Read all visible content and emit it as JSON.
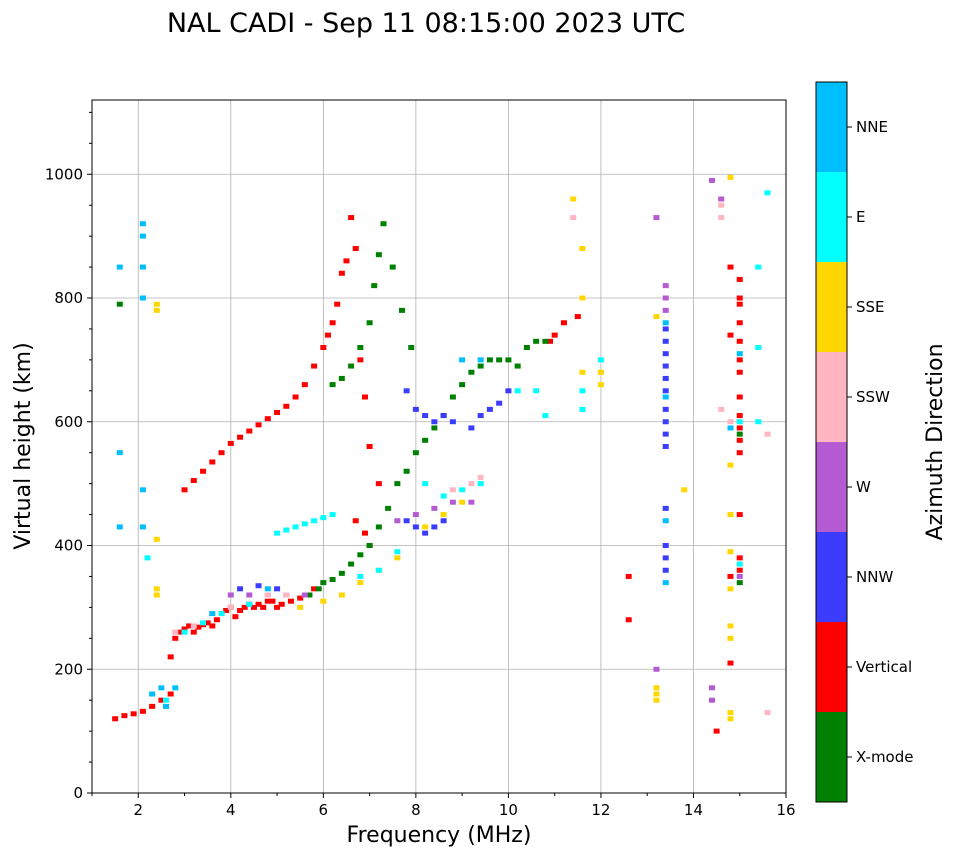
{
  "chart_data": {
    "type": "scatter",
    "title": "NAL CADI - Sep 11 08:15:00 2023 UTC",
    "xlabel": "Frequency (MHz)",
    "ylabel": "Virtual height (km)",
    "xlim": [
      1,
      16
    ],
    "ylim": [
      0,
      1120
    ],
    "xticks": [
      2,
      4,
      6,
      8,
      10,
      12,
      14,
      16
    ],
    "yticks": [
      0,
      200,
      400,
      600,
      800,
      1000
    ],
    "grid": true,
    "colorbar": {
      "label": "Azimuth Direction",
      "categories": [
        {
          "name": "X-mode",
          "color": "#008000"
        },
        {
          "name": "Vertical",
          "color": "#ff0000"
        },
        {
          "name": "NNW",
          "color": "#3c3cff"
        },
        {
          "name": "W",
          "color": "#b45ad2"
        },
        {
          "name": "SSW",
          "color": "#ffb6c1"
        },
        {
          "name": "SSE",
          "color": "#ffd700"
        },
        {
          "name": "E",
          "color": "#00ffff"
        },
        {
          "name": "NNE",
          "color": "#00bfff"
        }
      ]
    },
    "series": [
      {
        "name": "Vertical",
        "points": [
          [
            1.5,
            120
          ],
          [
            1.7,
            125
          ],
          [
            1.9,
            128
          ],
          [
            2.1,
            132
          ],
          [
            2.3,
            140
          ],
          [
            2.5,
            150
          ],
          [
            2.7,
            160
          ],
          [
            2.7,
            220
          ],
          [
            2.8,
            250
          ],
          [
            2.9,
            260
          ],
          [
            3.0,
            265
          ],
          [
            3.1,
            270
          ],
          [
            3.2,
            260
          ],
          [
            3.3,
            268
          ],
          [
            3.4,
            272
          ],
          [
            3.5,
            275
          ],
          [
            3.6,
            270
          ],
          [
            3.7,
            280
          ],
          [
            3.8,
            290
          ],
          [
            3.9,
            295
          ],
          [
            4.0,
            300
          ],
          [
            4.1,
            285
          ],
          [
            4.2,
            295
          ],
          [
            4.3,
            300
          ],
          [
            4.4,
            305
          ],
          [
            4.5,
            300
          ],
          [
            4.6,
            305
          ],
          [
            4.7,
            300
          ],
          [
            4.8,
            310
          ],
          [
            4.9,
            310
          ],
          [
            5.0,
            300
          ],
          [
            5.1,
            305
          ],
          [
            5.3,
            310
          ],
          [
            5.5,
            315
          ],
          [
            5.8,
            330
          ],
          [
            3.0,
            490
          ],
          [
            3.2,
            505
          ],
          [
            3.4,
            520
          ],
          [
            3.6,
            535
          ],
          [
            3.8,
            550
          ],
          [
            4.0,
            565
          ],
          [
            4.2,
            575
          ],
          [
            4.4,
            585
          ],
          [
            4.6,
            595
          ],
          [
            4.8,
            605
          ],
          [
            5.0,
            615
          ],
          [
            5.2,
            625
          ],
          [
            5.4,
            640
          ],
          [
            5.6,
            660
          ],
          [
            5.8,
            690
          ],
          [
            6.0,
            720
          ],
          [
            6.1,
            740
          ],
          [
            6.2,
            760
          ],
          [
            6.3,
            790
          ],
          [
            6.4,
            840
          ],
          [
            6.5,
            860
          ],
          [
            6.6,
            930
          ],
          [
            6.7,
            880
          ],
          [
            6.8,
            700
          ],
          [
            6.9,
            640
          ],
          [
            7.0,
            560
          ],
          [
            7.2,
            500
          ],
          [
            6.7,
            440
          ],
          [
            6.9,
            420
          ],
          [
            7.0,
            400
          ],
          [
            12.6,
            350
          ],
          [
            12.6,
            280
          ],
          [
            14.8,
            210
          ],
          [
            14.8,
            350
          ],
          [
            14.5,
            100
          ],
          [
            15.0,
            360
          ],
          [
            15.0,
            380
          ],
          [
            15.0,
            450
          ],
          [
            15.0,
            550
          ],
          [
            15.0,
            570
          ],
          [
            15.0,
            590
          ],
          [
            15.0,
            610
          ],
          [
            15.0,
            640
          ],
          [
            15.0,
            680
          ],
          [
            15.0,
            700
          ],
          [
            15.0,
            730
          ],
          [
            15.0,
            760
          ],
          [
            15.0,
            790
          ],
          [
            15.0,
            800
          ],
          [
            15.0,
            830
          ],
          [
            14.8,
            850
          ],
          [
            14.8,
            740
          ],
          [
            11.5,
            770
          ],
          [
            11.2,
            760
          ],
          [
            11.0,
            740
          ],
          [
            10.9,
            730
          ]
        ]
      },
      {
        "name": "X-mode",
        "points": [
          [
            1.6,
            790
          ],
          [
            5.7,
            320
          ],
          [
            5.9,
            330
          ],
          [
            6.0,
            340
          ],
          [
            6.2,
            345
          ],
          [
            6.4,
            355
          ],
          [
            6.6,
            370
          ],
          [
            6.8,
            385
          ],
          [
            7.0,
            400
          ],
          [
            7.2,
            430
          ],
          [
            7.4,
            460
          ],
          [
            7.6,
            500
          ],
          [
            7.8,
            520
          ],
          [
            8.0,
            550
          ],
          [
            8.2,
            570
          ],
          [
            8.4,
            590
          ],
          [
            8.6,
            610
          ],
          [
            8.8,
            640
          ],
          [
            9.0,
            660
          ],
          [
            9.2,
            680
          ],
          [
            9.4,
            690
          ],
          [
            9.6,
            700
          ],
          [
            9.8,
            700
          ],
          [
            10.0,
            700
          ],
          [
            10.2,
            690
          ],
          [
            10.4,
            720
          ],
          [
            10.6,
            730
          ],
          [
            10.8,
            730
          ],
          [
            6.2,
            660
          ],
          [
            6.4,
            670
          ],
          [
            6.6,
            690
          ],
          [
            6.8,
            720
          ],
          [
            7.0,
            760
          ],
          [
            7.1,
            820
          ],
          [
            7.2,
            870
          ],
          [
            7.3,
            920
          ],
          [
            7.5,
            850
          ],
          [
            7.7,
            780
          ],
          [
            7.9,
            720
          ],
          [
            15.0,
            340
          ],
          [
            15.0,
            580
          ]
        ]
      },
      {
        "name": "NNW",
        "points": [
          [
            4.2,
            330
          ],
          [
            4.6,
            335
          ],
          [
            5.0,
            330
          ],
          [
            7.8,
            440
          ],
          [
            8.0,
            430
          ],
          [
            8.2,
            420
          ],
          [
            8.4,
            430
          ],
          [
            8.6,
            440
          ],
          [
            7.8,
            650
          ],
          [
            8.0,
            620
          ],
          [
            8.2,
            610
          ],
          [
            8.4,
            600
          ],
          [
            8.6,
            610
          ],
          [
            8.8,
            600
          ],
          [
            9.2,
            590
          ],
          [
            9.4,
            610
          ],
          [
            9.6,
            620
          ],
          [
            9.8,
            630
          ],
          [
            10.0,
            650
          ],
          [
            13.4,
            360
          ],
          [
            13.4,
            380
          ],
          [
            13.4,
            400
          ],
          [
            13.4,
            460
          ],
          [
            13.4,
            560
          ],
          [
            13.4,
            580
          ],
          [
            13.4,
            600
          ],
          [
            13.4,
            620
          ],
          [
            13.4,
            650
          ],
          [
            13.4,
            670
          ],
          [
            13.4,
            690
          ],
          [
            13.4,
            710
          ],
          [
            13.4,
            730
          ],
          [
            13.4,
            750
          ]
        ]
      },
      {
        "name": "W",
        "points": [
          [
            4.0,
            320
          ],
          [
            4.4,
            320
          ],
          [
            4.8,
            320
          ],
          [
            5.2,
            320
          ],
          [
            5.6,
            320
          ],
          [
            7.6,
            440
          ],
          [
            8.0,
            450
          ],
          [
            8.4,
            460
          ],
          [
            8.8,
            470
          ],
          [
            9.2,
            470
          ],
          [
            13.2,
            930
          ],
          [
            13.2,
            200
          ],
          [
            13.4,
            780
          ],
          [
            13.4,
            800
          ],
          [
            13.4,
            820
          ],
          [
            14.4,
            990
          ],
          [
            14.6,
            960
          ],
          [
            15.0,
            350
          ],
          [
            14.4,
            150
          ],
          [
            14.4,
            170
          ]
        ]
      },
      {
        "name": "SSW",
        "points": [
          [
            2.8,
            260
          ],
          [
            3.2,
            270
          ],
          [
            3.6,
            290
          ],
          [
            4.0,
            300
          ],
          [
            4.8,
            320
          ],
          [
            5.2,
            320
          ],
          [
            8.8,
            490
          ],
          [
            9.2,
            500
          ],
          [
            9.4,
            510
          ],
          [
            14.6,
            930
          ],
          [
            14.6,
            950
          ],
          [
            14.6,
            620
          ],
          [
            14.8,
            600
          ],
          [
            15.6,
            580
          ],
          [
            15.6,
            130
          ],
          [
            11.4,
            930
          ]
        ]
      },
      {
        "name": "SSE",
        "points": [
          [
            2.4,
            330
          ],
          [
            2.4,
            320
          ],
          [
            2.4,
            780
          ],
          [
            2.4,
            790
          ],
          [
            2.4,
            410
          ],
          [
            5.5,
            300
          ],
          [
            6.0,
            310
          ],
          [
            6.4,
            320
          ],
          [
            6.8,
            340
          ],
          [
            7.2,
            360
          ],
          [
            7.6,
            380
          ],
          [
            8.2,
            430
          ],
          [
            8.6,
            450
          ],
          [
            9.0,
            470
          ],
          [
            11.4,
            960
          ],
          [
            11.6,
            880
          ],
          [
            11.6,
            800
          ],
          [
            11.6,
            680
          ],
          [
            12.0,
            660
          ],
          [
            12.0,
            680
          ],
          [
            13.2,
            150
          ],
          [
            13.2,
            160
          ],
          [
            13.2,
            170
          ],
          [
            13.2,
            770
          ],
          [
            13.8,
            490
          ],
          [
            14.8,
            130
          ],
          [
            14.8,
            120
          ],
          [
            14.8,
            250
          ],
          [
            14.8,
            270
          ],
          [
            14.8,
            330
          ],
          [
            14.8,
            390
          ],
          [
            14.8,
            530
          ],
          [
            14.8,
            450
          ],
          [
            14.8,
            995
          ]
        ]
      },
      {
        "name": "E",
        "points": [
          [
            2.2,
            380
          ],
          [
            2.6,
            150
          ],
          [
            3.0,
            260
          ],
          [
            3.4,
            275
          ],
          [
            3.8,
            290
          ],
          [
            4.4,
            305
          ],
          [
            5.0,
            420
          ],
          [
            5.2,
            425
          ],
          [
            5.4,
            430
          ],
          [
            5.6,
            435
          ],
          [
            5.8,
            440
          ],
          [
            6.0,
            445
          ],
          [
            6.2,
            450
          ],
          [
            6.8,
            350
          ],
          [
            7.2,
            360
          ],
          [
            7.6,
            390
          ],
          [
            8.2,
            500
          ],
          [
            8.6,
            480
          ],
          [
            9.0,
            490
          ],
          [
            9.4,
            500
          ],
          [
            10.2,
            650
          ],
          [
            10.6,
            650
          ],
          [
            10.8,
            610
          ],
          [
            11.6,
            620
          ],
          [
            11.6,
            650
          ],
          [
            12.0,
            700
          ],
          [
            15.0,
            370
          ],
          [
            15.0,
            600
          ],
          [
            15.4,
            600
          ],
          [
            15.4,
            720
          ],
          [
            15.4,
            850
          ],
          [
            15.6,
            970
          ]
        ]
      },
      {
        "name": "NNE",
        "points": [
          [
            1.6,
            850
          ],
          [
            1.6,
            430
          ],
          [
            1.6,
            550
          ],
          [
            2.1,
            920
          ],
          [
            2.1,
            900
          ],
          [
            2.1,
            850
          ],
          [
            2.1,
            800
          ],
          [
            2.1,
            490
          ],
          [
            2.1,
            430
          ],
          [
            2.3,
            160
          ],
          [
            2.5,
            170
          ],
          [
            2.6,
            140
          ],
          [
            2.8,
            170
          ],
          [
            3.6,
            290
          ],
          [
            4.8,
            330
          ],
          [
            9.0,
            700
          ],
          [
            9.4,
            700
          ],
          [
            13.4,
            340
          ],
          [
            13.4,
            440
          ],
          [
            13.4,
            640
          ],
          [
            13.4,
            760
          ],
          [
            14.8,
            590
          ],
          [
            15.0,
            710
          ]
        ]
      }
    ]
  }
}
